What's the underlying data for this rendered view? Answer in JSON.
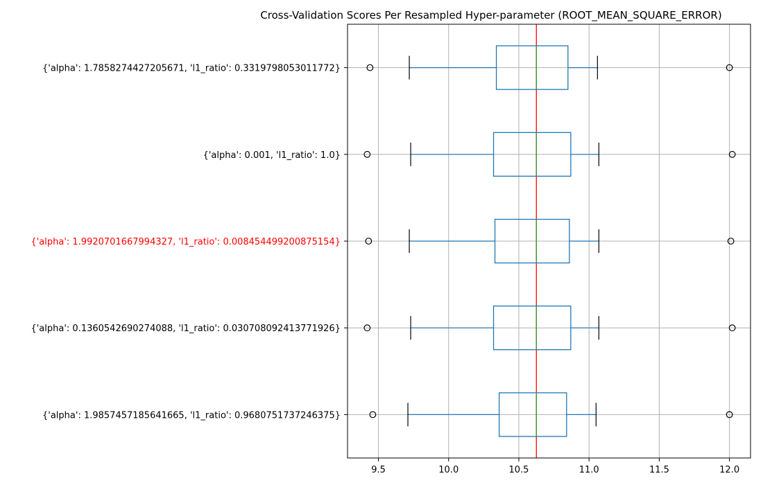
{
  "chart_data": {
    "type": "boxplot-horizontal",
    "title": "Cross-Validation Scores Per Resampled Hyper-parameter (ROOT_MEAN_SQUARE_ERROR)",
    "xlabel": "",
    "ylabel": "",
    "xlim": [
      9.28,
      12.15
    ],
    "x_ticks": [
      9.5,
      10.0,
      10.5,
      11.0,
      11.5,
      12.0
    ],
    "x_tick_labels": [
      "9.5",
      "10.0",
      "10.5",
      "11.0",
      "11.5",
      "12.0"
    ],
    "grid": true,
    "reference_line": {
      "x": 10.625,
      "color": "#ff0000"
    },
    "colors": {
      "box": "#1f77b4",
      "median": "#2ca02c",
      "cap": "#000000",
      "grid": "#b0b0b0",
      "highlight_label": "#ff0000",
      "default_label": "#000000"
    },
    "series": [
      {
        "label": "{'alpha': 1.7858274427205671, 'l1_ratio': 0.3319798053011772}",
        "highlight": false,
        "whisker_low": 9.72,
        "q1": 10.34,
        "median": 10.625,
        "q3": 10.85,
        "whisker_high": 11.06,
        "fliers": [
          9.44,
          12.0
        ]
      },
      {
        "label": "{'alpha': 0.001, 'l1_ratio': 1.0}",
        "highlight": false,
        "whisker_low": 9.73,
        "q1": 10.32,
        "median": 10.625,
        "q3": 10.87,
        "whisker_high": 11.07,
        "fliers": [
          9.42,
          12.02
        ]
      },
      {
        "label": "{'alpha': 1.9920701667994327, 'l1_ratio': 0.008454499200875154}",
        "highlight": true,
        "whisker_low": 9.72,
        "q1": 10.33,
        "median": 10.625,
        "q3": 10.86,
        "whisker_high": 11.07,
        "fliers": [
          9.43,
          12.01
        ]
      },
      {
        "label": "{'alpha': 0.1360542690274088, 'l1_ratio': 0.030708092413771926}",
        "highlight": false,
        "whisker_low": 9.73,
        "q1": 10.32,
        "median": 10.625,
        "q3": 10.87,
        "whisker_high": 11.07,
        "fliers": [
          9.42,
          12.02
        ]
      },
      {
        "label": "{'alpha': 1.9857457185641665, 'l1_ratio': 0.9680751737246375}",
        "highlight": false,
        "whisker_low": 9.71,
        "q1": 10.36,
        "median": 10.625,
        "q3": 10.84,
        "whisker_high": 11.05,
        "fliers": [
          9.46,
          12.0
        ]
      }
    ]
  }
}
